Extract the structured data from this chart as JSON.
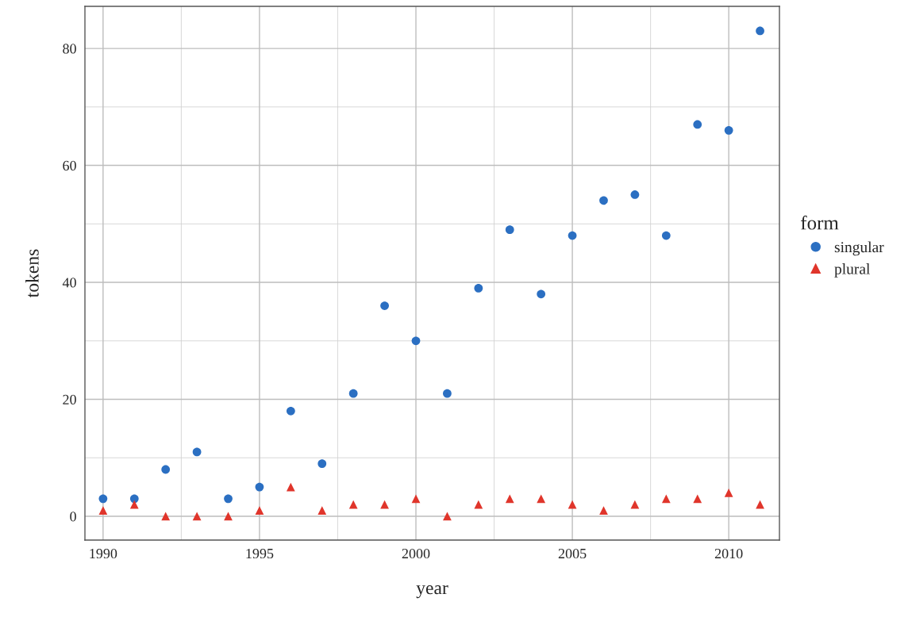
{
  "chart_data": {
    "type": "scatter",
    "xlabel": "year",
    "ylabel": "tokens",
    "legend_title": "form",
    "x": [
      1990,
      1991,
      1992,
      1993,
      1994,
      1995,
      1996,
      1997,
      1998,
      1999,
      2000,
      2001,
      2002,
      2003,
      2004,
      2005,
      2006,
      2007,
      2008,
      2009,
      2010,
      2011
    ],
    "series": [
      {
        "name": "singular",
        "color": "#2b6fc2",
        "marker": "circle",
        "values": [
          3,
          3,
          8,
          11,
          3,
          5,
          18,
          9,
          21,
          36,
          30,
          21,
          39,
          49,
          38,
          48,
          54,
          55,
          48,
          67,
          66,
          83
        ]
      },
      {
        "name": "plural",
        "color": "#e0352b",
        "marker": "triangle",
        "values": [
          1,
          2,
          0,
          0,
          0,
          1,
          5,
          1,
          2,
          2,
          3,
          0,
          2,
          3,
          3,
          2,
          1,
          2,
          3,
          3,
          4,
          2
        ]
      }
    ],
    "xlim": [
      1989.42,
      2011.62
    ],
    "ylim": [
      -4.07,
      87.2
    ],
    "xticks": [
      1990,
      1995,
      2000,
      2005,
      2010
    ],
    "yticks": [
      0,
      20,
      40,
      60,
      80
    ],
    "grid": true,
    "legend": "right"
  }
}
